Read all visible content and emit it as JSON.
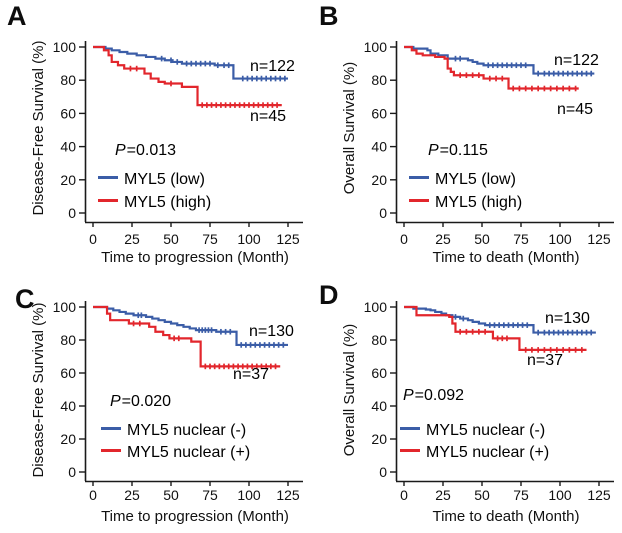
{
  "figure": {
    "background": "#ffffff",
    "accent_blue": "#3b5da7",
    "accent_red": "#e2262c",
    "axis_color": "#1a1a1a"
  },
  "chart_data": [
    {
      "panel_letter": "A",
      "type": "line",
      "subtype": "kaplan-meier-step",
      "x_title": "Time to progression (Month)",
      "y_title": "Disease-Free Survival (%)",
      "p_symbol": "P",
      "p_value": "=0.013",
      "xticks": [
        0,
        25,
        50,
        75,
        100,
        125
      ],
      "yticks": [
        0,
        20,
        40,
        60,
        80,
        100
      ],
      "xlim": [
        0,
        130
      ],
      "ylim": [
        0,
        100
      ],
      "grid": false,
      "legend_position": "lower-left",
      "series": [
        {
          "name": "MYL5 (low)",
          "n_label": "n=122",
          "color": "#3b5da7",
          "points": [
            [
              0,
              100
            ],
            [
              8,
              99
            ],
            [
              12,
              98
            ],
            [
              17,
              97
            ],
            [
              22,
              96
            ],
            [
              28,
              95
            ],
            [
              34,
              94
            ],
            [
              40,
              93
            ],
            [
              46,
              92
            ],
            [
              51,
              91
            ],
            [
              57,
              90
            ],
            [
              78,
              89
            ],
            [
              90,
              81
            ],
            [
              125,
              81
            ]
          ],
          "censor_times": [
            44,
            50,
            54,
            60,
            63,
            66,
            69,
            72,
            75,
            80,
            84,
            87,
            96,
            99,
            102,
            105,
            108,
            111,
            114,
            117,
            120,
            123
          ]
        },
        {
          "name": "MYL5 (high)",
          "n_label": "n=45",
          "color": "#e2262c",
          "points": [
            [
              0,
              100
            ],
            [
              7,
              98
            ],
            [
              10,
              95
            ],
            [
              12,
              91
            ],
            [
              16,
              89
            ],
            [
              20,
              87
            ],
            [
              33,
              84
            ],
            [
              37,
              81
            ],
            [
              42,
              79
            ],
            [
              46,
              78
            ],
            [
              57,
              76
            ],
            [
              67,
              65
            ],
            [
              121,
              65
            ]
          ],
          "censor_times": [
            24,
            28,
            50,
            70,
            73,
            76,
            79,
            82,
            85,
            88,
            91,
            94,
            97,
            100,
            103,
            106,
            109,
            112,
            115,
            118
          ]
        }
      ]
    },
    {
      "panel_letter": "B",
      "type": "line",
      "subtype": "kaplan-meier-step",
      "x_title": "Time to death (Month)",
      "y_title": "Overall Survival (%)",
      "p_symbol": "P",
      "p_value": "=0.115",
      "xticks": [
        0,
        25,
        50,
        75,
        100,
        125
      ],
      "yticks": [
        0,
        20,
        40,
        60,
        80,
        100
      ],
      "xlim": [
        0,
        130
      ],
      "ylim": [
        0,
        100
      ],
      "grid": false,
      "legend_position": "lower-left",
      "series": [
        {
          "name": "MYL5 (low)",
          "n_label": "n=122",
          "color": "#3b5da7",
          "points": [
            [
              0,
              100
            ],
            [
              6,
              99
            ],
            [
              15,
              98
            ],
            [
              17,
              96
            ],
            [
              22,
              95
            ],
            [
              28,
              93
            ],
            [
              41,
              92
            ],
            [
              44,
              91
            ],
            [
              47,
              90
            ],
            [
              51,
              89
            ],
            [
              83,
              84
            ],
            [
              122,
              84
            ]
          ],
          "censor_times": [
            33,
            36,
            54,
            57,
            60,
            63,
            66,
            69,
            72,
            75,
            78,
            86,
            90,
            93,
            96,
            99,
            102,
            105,
            108,
            111,
            114,
            117,
            120
          ]
        },
        {
          "name": "MYL5 (high)",
          "n_label": "n=45",
          "color": "#e2262c",
          "points": [
            [
              0,
              100
            ],
            [
              5,
              98
            ],
            [
              8,
              96
            ],
            [
              12,
              95
            ],
            [
              20,
              94
            ],
            [
              26,
              93
            ],
            [
              28,
              87
            ],
            [
              30,
              85
            ],
            [
              32,
              83
            ],
            [
              51,
              81
            ],
            [
              67,
              75
            ],
            [
              112,
              75
            ]
          ],
          "censor_times": [
            36,
            40,
            44,
            48,
            55,
            59,
            63,
            70,
            74,
            78,
            82,
            86,
            90,
            94,
            98,
            102,
            106,
            110
          ]
        }
      ]
    },
    {
      "panel_letter": "C",
      "type": "line",
      "subtype": "kaplan-meier-step",
      "x_title": "Time to progression (Month)",
      "y_title": "Disease-Free Survival (%)",
      "p_symbol": "P",
      "p_value": "=0.020",
      "xticks": [
        0,
        25,
        50,
        75,
        100,
        125
      ],
      "yticks": [
        0,
        20,
        40,
        60,
        80,
        100
      ],
      "xlim": [
        0,
        130
      ],
      "ylim": [
        0,
        100
      ],
      "grid": false,
      "legend_position": "lower-left",
      "series": [
        {
          "name": "MYL5 nuclear (-)",
          "n_label": "n=130",
          "color": "#3b5da7",
          "points": [
            [
              0,
              100
            ],
            [
              9,
              99
            ],
            [
              13,
              98
            ],
            [
              17,
              97
            ],
            [
              21,
              96
            ],
            [
              26,
              95
            ],
            [
              34,
              94
            ],
            [
              38,
              93
            ],
            [
              42,
              92
            ],
            [
              46,
              91
            ],
            [
              50,
              90
            ],
            [
              54,
              89
            ],
            [
              58,
              88
            ],
            [
              62,
              87
            ],
            [
              66,
              86
            ],
            [
              79,
              85
            ],
            [
              92,
              77
            ],
            [
              125,
              77
            ]
          ],
          "censor_times": [
            29,
            31,
            68,
            70,
            72,
            74,
            76,
            82,
            85,
            88,
            95,
            98,
            101,
            104,
            107,
            110,
            113,
            116,
            119,
            122
          ]
        },
        {
          "name": "MYL5 nuclear (+)",
          "n_label": "n=37",
          "color": "#e2262c",
          "points": [
            [
              0,
              100
            ],
            [
              9,
              96
            ],
            [
              11,
              92
            ],
            [
              23,
              90
            ],
            [
              36,
              88
            ],
            [
              40,
              85
            ],
            [
              45,
              83
            ],
            [
              49,
              81
            ],
            [
              63,
              79
            ],
            [
              69,
              64
            ],
            [
              120,
              64
            ]
          ],
          "censor_times": [
            26,
            30,
            52,
            55,
            72,
            75,
            78,
            81,
            84,
            87,
            90,
            93,
            96,
            99,
            102,
            105,
            108,
            111,
            114,
            117
          ]
        }
      ]
    },
    {
      "panel_letter": "D",
      "type": "line",
      "subtype": "kaplan-meier-step",
      "x_title": "Time to death (Month)",
      "y_title": "Overall Survival (%)",
      "p_symbol": "P",
      "p_value": "=0.092",
      "xticks": [
        0,
        25,
        50,
        75,
        100,
        125
      ],
      "yticks": [
        0,
        20,
        40,
        60,
        80,
        100
      ],
      "xlim": [
        0,
        130
      ],
      "ylim": [
        0,
        100
      ],
      "grid": false,
      "legend_position": "lower-left",
      "series": [
        {
          "name": "MYL5 nuclear (-)",
          "n_label": "n=130",
          "color": "#3b5da7",
          "points": [
            [
              0,
              100
            ],
            [
              6,
              99
            ],
            [
              14,
              98.5
            ],
            [
              17,
              98
            ],
            [
              20,
              97
            ],
            [
              24,
              96
            ],
            [
              27,
              95
            ],
            [
              31,
              94
            ],
            [
              36,
              93
            ],
            [
              41,
              92
            ],
            [
              44,
              91
            ],
            [
              48,
              90
            ],
            [
              52,
              89
            ],
            [
              83,
              84.5
            ],
            [
              123,
              84.5
            ]
          ],
          "censor_times": [
            33,
            38,
            55,
            58,
            61,
            64,
            67,
            70,
            73,
            76,
            79,
            86,
            90,
            93,
            96,
            99,
            102,
            105,
            108,
            111,
            114,
            117,
            120
          ]
        },
        {
          "name": "MYL5 nuclear (+)",
          "n_label": "n=37",
          "color": "#e2262c",
          "points": [
            [
              0,
              100
            ],
            [
              8,
              95
            ],
            [
              29,
              94
            ],
            [
              31,
              90
            ],
            [
              33,
              85
            ],
            [
              57,
              81
            ],
            [
              74,
              74
            ],
            [
              117,
              74
            ]
          ],
          "censor_times": [
            36,
            40,
            44,
            48,
            52,
            60,
            63,
            66,
            78,
            82,
            86,
            90,
            94,
            98,
            102,
            106,
            110,
            114
          ]
        }
      ]
    }
  ]
}
